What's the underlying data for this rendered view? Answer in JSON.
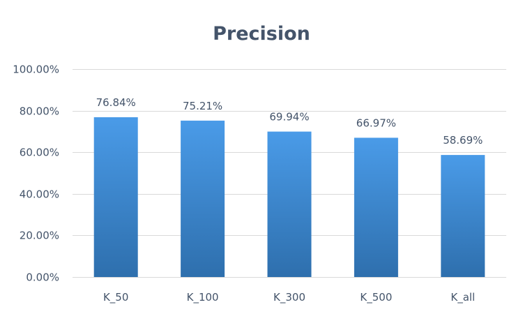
{
  "chart_data": {
    "type": "bar",
    "title": "Precision",
    "xlabel": "",
    "ylabel": "",
    "categories": [
      "K_50",
      "K_100",
      "K_300",
      "K_500",
      "K_all"
    ],
    "values": [
      76.84,
      75.21,
      69.94,
      66.97,
      58.69
    ],
    "data_labels": [
      "76.84%",
      "75.21%",
      "69.94%",
      "66.97%",
      "58.69%"
    ],
    "ylim": [
      0,
      100
    ],
    "y_ticks": [
      0,
      20,
      40,
      60,
      80,
      100
    ],
    "y_tick_labels": [
      "0.00%",
      "20.00%",
      "40.00%",
      "60.00%",
      "80.00%",
      "100.00%"
    ],
    "grid": true,
    "legend": "none",
    "colors": {
      "bar_top": "#4a9be8",
      "bar_bottom": "#2e6fad",
      "text": "#44546a",
      "grid": "#d9d9d9"
    }
  }
}
